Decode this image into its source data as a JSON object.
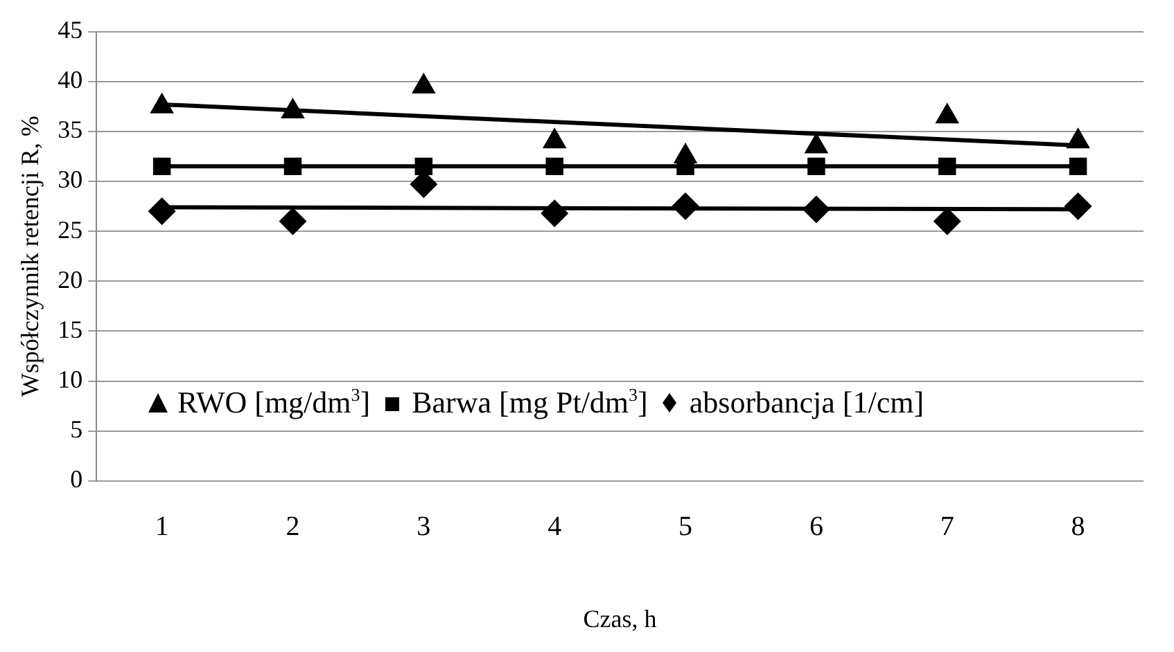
{
  "chart_data": {
    "type": "scatter",
    "xlabel": "Czas, h",
    "ylabel": "Współczynnik retencji R, %",
    "categories": [
      "1",
      "2",
      "3",
      "4",
      "5",
      "6",
      "7",
      "8"
    ],
    "ylim": [
      0,
      45
    ],
    "yticks": [
      0,
      5,
      10,
      15,
      20,
      25,
      30,
      35,
      40,
      45
    ],
    "grid": "y",
    "legend": "bottom left",
    "series": [
      {
        "name": "RWO [mg/dm$^{3}$]",
        "color": "#000000",
        "marker": "triangle",
        "values": [
          37.5,
          37,
          39.5,
          34,
          32.5,
          33.5,
          36.5,
          34
        ]
      },
      {
        "name": "Barwa [mg Pt/dm$^{3}$]",
        "color": "#000000",
        "marker": "square",
        "values": [
          31.5,
          31.5,
          31.5,
          31.5,
          31.5,
          31.5,
          31.5,
          31.5
        ]
      },
      {
        "name": "absorbancja [1/cm]",
        "color": "#000000",
        "marker": "diamond",
        "values": [
          27,
          26,
          29.7,
          26.8,
          27.5,
          27.2,
          26,
          27.5
        ]
      },
      {
        "type": "line",
        "color": "#000000",
        "marker": "none",
        "x": [
          "1",
          "8"
        ],
        "values": [
          37.7,
          33.6
        ]
      },
      {
        "type": "line",
        "color": "#000000",
        "marker": "none",
        "x": [
          "1",
          "8"
        ],
        "values": [
          31.5,
          31.5
        ]
      },
      {
        "type": "line",
        "color": "#000000",
        "marker": "none",
        "x": [
          "1",
          "8"
        ],
        "values": [
          27.4,
          27.2
        ]
      }
    ]
  }
}
